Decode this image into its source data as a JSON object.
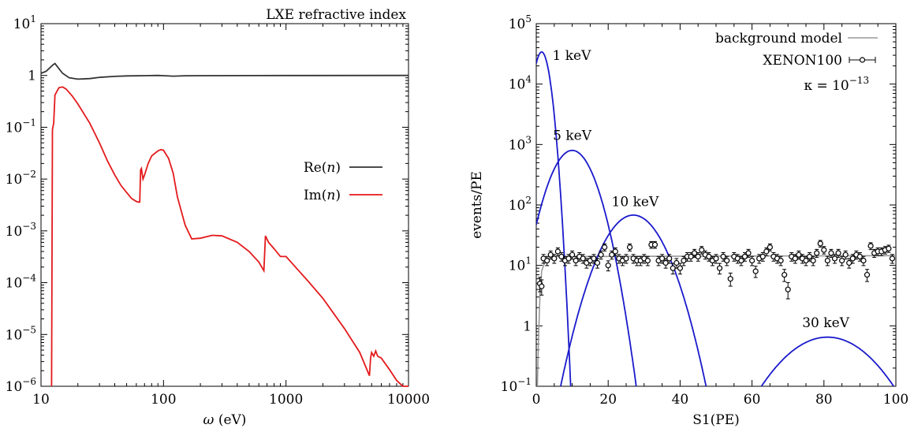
{
  "chart_data": [
    {
      "type": "line",
      "title": "LXE refractive index",
      "xlabel": "ω (eV)",
      "ylabel": "",
      "xscale": "log",
      "yscale": "log",
      "xlim": [
        10,
        10000
      ],
      "ylim": [
        1e-06,
        10
      ],
      "x_ticks": [
        {
          "v": 10,
          "label": "10"
        },
        {
          "v": 100,
          "label": "100"
        },
        {
          "v": 1000,
          "label": "1000"
        },
        {
          "v": 10000,
          "label": "10000"
        }
      ],
      "y_ticks": [
        {
          "v": 1e-06,
          "base": "10",
          "exp": "−6"
        },
        {
          "v": 1e-05,
          "base": "10",
          "exp": "−5"
        },
        {
          "v": 0.0001,
          "base": "10",
          "exp": "−4"
        },
        {
          "v": 0.001,
          "base": "10",
          "exp": "−3"
        },
        {
          "v": 0.01,
          "base": "10",
          "exp": "−2"
        },
        {
          "v": 0.1,
          "base": "10",
          "exp": "−1"
        },
        {
          "v": 1,
          "base": "1",
          "exp": ""
        },
        {
          "v": 10,
          "base": "10",
          "exp": "1"
        }
      ],
      "legend_position": "middle-right",
      "series": [
        {
          "name": "Re(n)",
          "color": "#333333",
          "points": [
            [
              10,
              1.1
            ],
            [
              11,
              1.2
            ],
            [
              12.5,
              1.6
            ],
            [
              13,
              1.7
            ],
            [
              14,
              1.35
            ],
            [
              15,
              1.1
            ],
            [
              17,
              0.9
            ],
            [
              20,
              0.85
            ],
            [
              25,
              0.87
            ],
            [
              30,
              0.92
            ],
            [
              40,
              0.96
            ],
            [
              50,
              0.98
            ],
            [
              70,
              0.99
            ],
            [
              90,
              1.0
            ],
            [
              100,
              0.99
            ],
            [
              120,
              0.97
            ],
            [
              150,
              0.985
            ],
            [
              200,
              0.99
            ],
            [
              500,
              0.995
            ],
            [
              1000,
              0.998
            ],
            [
              10000,
              1.0
            ]
          ]
        },
        {
          "name": "Im(n)",
          "color": "#e41a1c",
          "points": [
            [
              12.2,
              1e-06
            ],
            [
              12.4,
              0.09
            ],
            [
              12.7,
              0.12
            ],
            [
              13,
              0.42
            ],
            [
              14,
              0.58
            ],
            [
              15,
              0.6
            ],
            [
              16,
              0.55
            ],
            [
              18,
              0.4
            ],
            [
              20,
              0.28
            ],
            [
              25,
              0.12
            ],
            [
              30,
              0.05
            ],
            [
              35,
              0.022
            ],
            [
              40,
              0.012
            ],
            [
              45,
              0.0075
            ],
            [
              50,
              0.0055
            ],
            [
              55,
              0.0042
            ],
            [
              60,
              0.0037
            ],
            [
              62,
              0.0036
            ],
            [
              64,
              0.0036
            ],
            [
              65,
              0.015
            ],
            [
              66,
              0.016
            ],
            [
              68,
              0.01
            ],
            [
              70,
              0.012
            ],
            [
              75,
              0.02
            ],
            [
              80,
              0.028
            ],
            [
              90,
              0.035
            ],
            [
              95,
              0.037
            ],
            [
              100,
              0.036
            ],
            [
              110,
              0.025
            ],
            [
              120,
              0.013
            ],
            [
              130,
              0.0045
            ],
            [
              150,
              0.0013
            ],
            [
              170,
              0.0007
            ],
            [
              200,
              0.00072
            ],
            [
              250,
              0.00082
            ],
            [
              300,
              0.0008
            ],
            [
              400,
              0.0006
            ],
            [
              500,
              0.0004
            ],
            [
              600,
              0.00025
            ],
            [
              660,
              0.00017
            ],
            [
              680,
              0.0008
            ],
            [
              720,
              0.0006
            ],
            [
              800,
              0.00045
            ],
            [
              900,
              0.00032
            ],
            [
              1000,
              0.00032
            ],
            [
              1500,
              0.00011
            ],
            [
              2000,
              5e-05
            ],
            [
              3000,
              1.3e-05
            ],
            [
              4000,
              4.5e-06
            ],
            [
              4800,
              1.6e-06
            ],
            [
              4900,
              3.5e-06
            ],
            [
              5000,
              4.5e-06
            ],
            [
              5200,
              3.8e-06
            ],
            [
              5400,
              4.8e-06
            ],
            [
              5600,
              3.8e-06
            ],
            [
              6000,
              3.5e-06
            ],
            [
              7000,
              2.1e-06
            ],
            [
              8000,
              1.3e-06
            ],
            [
              9000,
              9e-07
            ],
            [
              10000,
              8e-07
            ]
          ]
        }
      ]
    },
    {
      "type": "line",
      "title": "",
      "xlabel": "S1(PE)",
      "ylabel": "events/PE",
      "xscale": "linear",
      "yscale": "log",
      "xlim": [
        0,
        100
      ],
      "ylim": [
        0.1,
        100000
      ],
      "x_ticks": [
        {
          "v": 0,
          "label": "0"
        },
        {
          "v": 20,
          "label": "20"
        },
        {
          "v": 40,
          "label": "40"
        },
        {
          "v": 60,
          "label": "60"
        },
        {
          "v": 80,
          "label": "80"
        },
        {
          "v": 100,
          "label": "100"
        }
      ],
      "y_ticks": [
        {
          "v": 0.1,
          "base": "10",
          "exp": "−1"
        },
        {
          "v": 1,
          "base": "1",
          "exp": ""
        },
        {
          "v": 10,
          "base": "10",
          "exp": "1"
        },
        {
          "v": 100,
          "base": "10",
          "exp": "2"
        },
        {
          "v": 1000,
          "base": "10",
          "exp": "3"
        },
        {
          "v": 10000,
          "base": "10",
          "exp": "4"
        },
        {
          "v": 100000,
          "base": "10",
          "exp": "5"
        }
      ],
      "annotation": {
        "text": "κ = 10",
        "exp": "−13",
        "at": [
          83.5,
          8000
        ]
      },
      "legend_position": "top-right",
      "legend": [
        {
          "name": "background model",
          "kind": "line",
          "color": "#999999"
        },
        {
          "name": "XENON100",
          "kind": "errorbar",
          "color": "#000000"
        }
      ],
      "background_model": {
        "color": "#999999",
        "points": [
          [
            0.3,
            0.1
          ],
          [
            0.6,
            0.5
          ],
          [
            1,
            3
          ],
          [
            1.5,
            8
          ],
          [
            2.5,
            12
          ],
          [
            4,
            14
          ],
          [
            100,
            14.5
          ]
        ]
      },
      "signal_curves": [
        {
          "name": "1 keV",
          "label": "1 keV",
          "color": "#1a1acc",
          "peak_x": 1.5,
          "peak_y": 34000,
          "sigma": 1.6,
          "label_at": [
            4.5,
            25000
          ]
        },
        {
          "name": "5 keV",
          "label": "5 keV",
          "color": "#1a1acc",
          "peak_x": 10,
          "peak_y": 800,
          "sigma": 4.2,
          "label_at": [
            10,
            1200
          ]
        },
        {
          "name": "10 keV",
          "label": "10 keV",
          "color": "#1a1acc",
          "peak_x": 27,
          "peak_y": 68,
          "sigma": 5.6,
          "label_at": [
            27.5,
            95
          ]
        },
        {
          "name": "30 keV",
          "label": "30 keV",
          "color": "#1a1acc",
          "peak_x": 81,
          "peak_y": 0.65,
          "sigma": 9.5,
          "label_at": [
            80.5,
            0.95
          ]
        }
      ],
      "xenon100_points": [
        [
          1,
          5
        ],
        [
          1.5,
          4.5
        ],
        [
          2,
          13
        ],
        [
          3,
          12
        ],
        [
          4,
          15
        ],
        [
          5,
          13
        ],
        [
          6,
          17
        ],
        [
          7,
          14
        ],
        [
          8,
          12
        ],
        [
          9,
          13
        ],
        [
          10,
          15
        ],
        [
          11,
          12
        ],
        [
          12,
          14
        ],
        [
          13,
          13
        ],
        [
          14,
          11
        ],
        [
          15,
          12
        ],
        [
          16,
          13
        ],
        [
          17,
          11
        ],
        [
          18,
          15
        ],
        [
          19,
          20
        ],
        [
          20,
          10
        ],
        [
          21,
          15
        ],
        [
          22,
          17
        ],
        [
          23,
          13
        ],
        [
          24,
          12
        ],
        [
          25,
          13
        ],
        [
          26,
          20
        ],
        [
          27,
          13
        ],
        [
          28,
          12
        ],
        [
          29,
          12
        ],
        [
          30,
          13
        ],
        [
          31,
          12
        ],
        [
          32,
          22
        ],
        [
          33,
          22
        ],
        [
          34,
          12
        ],
        [
          35,
          13
        ],
        [
          36,
          11
        ],
        [
          37,
          13
        ],
        [
          38,
          9
        ],
        [
          39,
          11
        ],
        [
          40,
          9
        ],
        [
          41,
          12
        ],
        [
          42,
          14
        ],
        [
          43,
          14
        ],
        [
          44,
          16
        ],
        [
          45,
          14
        ],
        [
          46,
          18
        ],
        [
          47,
          15
        ],
        [
          48,
          14
        ],
        [
          49,
          12
        ],
        [
          50,
          13
        ],
        [
          51,
          9
        ],
        [
          52,
          14
        ],
        [
          53,
          12
        ],
        [
          54,
          6
        ],
        [
          55,
          14
        ],
        [
          56,
          13
        ],
        [
          57,
          12
        ],
        [
          58,
          14
        ],
        [
          59,
          16
        ],
        [
          60,
          12
        ],
        [
          61,
          8
        ],
        [
          62,
          13
        ],
        [
          63,
          14
        ],
        [
          64,
          17
        ],
        [
          65,
          20
        ],
        [
          66,
          14
        ],
        [
          67,
          13
        ],
        [
          68,
          12
        ],
        [
          69,
          7
        ],
        [
          70,
          4
        ],
        [
          71,
          14
        ],
        [
          72,
          13
        ],
        [
          73,
          15
        ],
        [
          74,
          13
        ],
        [
          75,
          12
        ],
        [
          76,
          14
        ],
        [
          77,
          12
        ],
        [
          78,
          16
        ],
        [
          79,
          23
        ],
        [
          80,
          18
        ],
        [
          81,
          12
        ],
        [
          82,
          16
        ],
        [
          83,
          13
        ],
        [
          84,
          16
        ],
        [
          85,
          12
        ],
        [
          86,
          15
        ],
        [
          87,
          11
        ],
        [
          88,
          13
        ],
        [
          89,
          15
        ],
        [
          90,
          14
        ],
        [
          91,
          12
        ],
        [
          92,
          7
        ],
        [
          93,
          21
        ],
        [
          94,
          16
        ],
        [
          95,
          17
        ],
        [
          96,
          17
        ],
        [
          97,
          18
        ],
        [
          98,
          19
        ],
        [
          99,
          13
        ]
      ]
    }
  ]
}
